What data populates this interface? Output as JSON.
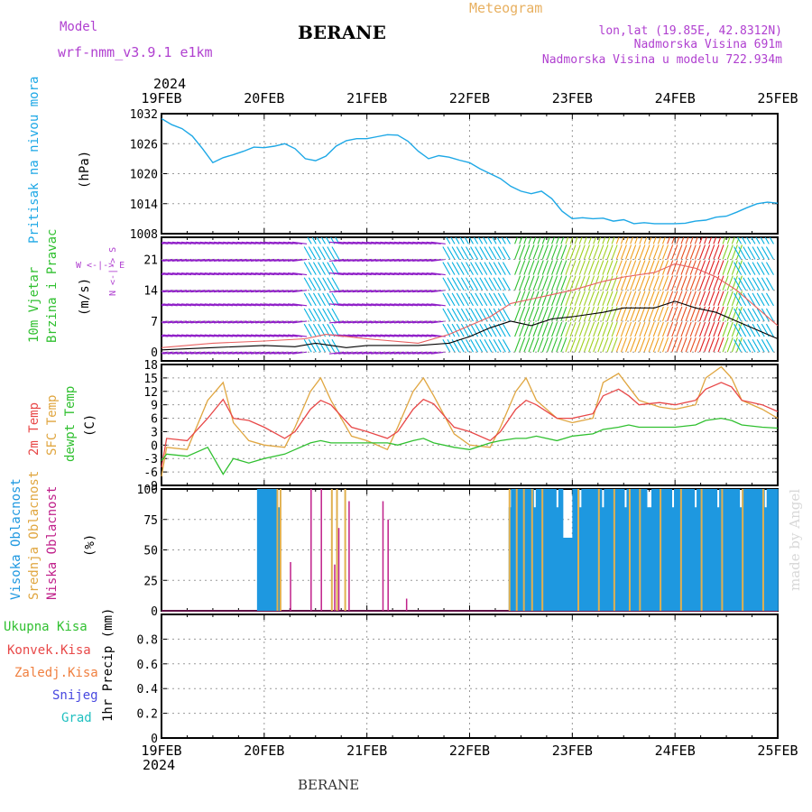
{
  "header": {
    "model_label": "Model",
    "model_name": "wrf-nmm_v3.9.1 e1km",
    "station_title": "BERANE",
    "meteogram_label": "Meteogram",
    "lonlat": "lon,lat (19.85E, 42.8312N)",
    "altitude": "Nadmorska Visina 691m",
    "model_altitude": "Nadmorska Visina u modelu 722.934m",
    "year_top": "2024",
    "year_bottom": "2024",
    "footer_station": "BERANE",
    "credit": "made by Angel"
  },
  "time_axis": {
    "labels": [
      "19FEB",
      "20FEB",
      "21FEB",
      "22FEB",
      "23FEB",
      "24FEB",
      "25FEB"
    ]
  },
  "colors": {
    "pressure": "#1ea8e6",
    "temp2m": "#e84848",
    "sfc": "#e0a640",
    "dewpt": "#30c030",
    "high_cloud": "#1e98e0",
    "mid_cloud": "#e0b050",
    "low_cloud": "#c0208a",
    "purple": "#b040d0",
    "wind_low": "#9020c8",
    "wind_mid": "#00b0e0",
    "wind_high": "#e02020"
  },
  "chart_data": [
    {
      "type": "line",
      "name": "pressure",
      "ylabel_color": "Pritisak na nivou mora",
      "ylabel_unit": "(hPa)",
      "ylim": [
        1008,
        1032
      ],
      "yticks": [
        1008,
        1014,
        1020,
        1026,
        1032
      ],
      "x_days": [
        0,
        0.1,
        0.2,
        0.3,
        0.4,
        0.5,
        0.6,
        0.7,
        0.8,
        0.9,
        1.0,
        1.1,
        1.2,
        1.3,
        1.4,
        1.5,
        1.6,
        1.7,
        1.8,
        1.9,
        2.0,
        2.1,
        2.2,
        2.3,
        2.4,
        2.5,
        2.6,
        2.7,
        2.8,
        2.9,
        3.0,
        3.1,
        3.2,
        3.3,
        3.4,
        3.5,
        3.6,
        3.7,
        3.8,
        3.9,
        4.0,
        4.1,
        4.2,
        4.3,
        4.4,
        4.5,
        4.6,
        4.7,
        4.8,
        4.9,
        5.0,
        5.1,
        5.2,
        5.3,
        5.4,
        5.5,
        5.6,
        5.7,
        5.8,
        5.9,
        6.0
      ],
      "values": [
        1031,
        1029.8,
        1029,
        1027.5,
        1025,
        1022.2,
        1023.2,
        1023.8,
        1024.5,
        1025.3,
        1025.2,
        1025.5,
        1026,
        1025,
        1023,
        1022.6,
        1023.5,
        1025.5,
        1026.6,
        1027,
        1027,
        1027.4,
        1027.8,
        1027.7,
        1026.5,
        1024.5,
        1023,
        1023.6,
        1023.3,
        1022.7,
        1022.2,
        1021,
        1020,
        1019,
        1017.5,
        1016.5,
        1016,
        1016.5,
        1015,
        1012.5,
        1011,
        1011.2,
        1011,
        1011.1,
        1010.5,
        1010.8,
        1010,
        1010.2,
        1010,
        1010,
        1010,
        1010.1,
        1010.5,
        1010.7,
        1011.3,
        1011.5,
        1012.3,
        1013.2,
        1014,
        1014.3,
        1014.1
      ]
    },
    {
      "type": "line",
      "name": "wind",
      "ylabel_color_1": "10m Vjetar",
      "ylabel_color_2": "Brzina i Pravac",
      "ylabel_unit": "(m/s)",
      "compass_ns": "N <-|-> S",
      "compass_we": "W <-|-> E",
      "ylim": [
        -2,
        26
      ],
      "yticks": [
        0,
        7,
        14,
        21
      ],
      "series": [
        {
          "x_days": [
            0,
            0.5,
            1,
            1.3,
            1.5,
            1.8,
            2,
            2.5,
            2.8,
            3,
            3.2,
            3.4,
            3.6,
            3.8,
            4,
            4.3,
            4.5,
            4.8,
            5,
            5.2,
            5.4,
            5.6,
            6
          ],
          "values": [
            0.5,
            1,
            1.5,
            1.2,
            2,
            1,
            1.5,
            1.5,
            2,
            3.5,
            5.5,
            7,
            6,
            7.5,
            8,
            9,
            10,
            10,
            11.5,
            10,
            9,
            7,
            3
          ]
        },
        {
          "x_days": [
            0,
            0.5,
            1,
            1.4,
            1.6,
            2,
            2.5,
            2.8,
            3,
            3.2,
            3.4,
            3.6,
            3.8,
            4,
            4.3,
            4.5,
            4.8,
            5,
            5.2,
            5.4,
            5.6,
            6
          ],
          "values": [
            1,
            2,
            2.5,
            3,
            4,
            3,
            2,
            4,
            6,
            8,
            11,
            12,
            13,
            14,
            16,
            17,
            18,
            20,
            19,
            17,
            14,
            6
          ]
        }
      ]
    },
    {
      "type": "line",
      "name": "temperature",
      "ylabel_t2m": "2m Temp",
      "ylabel_sfc": "SFC Temp",
      "ylabel_dew": "dewpt Temp",
      "ylabel_unit": "(C)",
      "ylim": [
        -9,
        18
      ],
      "yticks": [
        -9,
        -6,
        -3,
        0,
        3,
        6,
        9,
        12,
        15,
        18
      ],
      "x_days": [
        0,
        0.05,
        0.25,
        0.45,
        0.6,
        0.7,
        0.85,
        1.0,
        1.2,
        1.3,
        1.45,
        1.55,
        1.65,
        1.85,
        2.0,
        2.2,
        2.3,
        2.45,
        2.55,
        2.65,
        2.85,
        3.0,
        3.2,
        3.3,
        3.45,
        3.55,
        3.65,
        3.85,
        4.0,
        4.2,
        4.3,
        4.45,
        4.55,
        4.65,
        4.85,
        5.0,
        5.2,
        5.3,
        5.45,
        5.55,
        5.65,
        5.85,
        6.0
      ],
      "series": [
        {
          "name": "2m",
          "values": [
            -5,
            1.5,
            1,
            6,
            10.2,
            6,
            5.5,
            4,
            1.5,
            3,
            8,
            10,
            9,
            4,
            3,
            1.5,
            3,
            8,
            10.2,
            9.2,
            4,
            3,
            1,
            3,
            8,
            10,
            9,
            6,
            6,
            7,
            11,
            12.5,
            11,
            9,
            9.5,
            9,
            10,
            12.5,
            14,
            13,
            10,
            9,
            7.5
          ]
        },
        {
          "name": "SFC",
          "values": [
            -7,
            -0.5,
            -1,
            10,
            14,
            5,
            1,
            0,
            -0.5,
            4,
            12,
            15,
            10,
            2,
            1,
            -1,
            4,
            12,
            15,
            11,
            2.5,
            0,
            -0.5,
            4,
            12,
            15,
            10,
            6,
            5,
            6,
            14,
            16,
            13,
            10,
            8.5,
            8,
            9,
            15,
            17.5,
            15,
            10,
            8,
            6
          ]
        },
        {
          "name": "dewpt",
          "values": [
            -3.5,
            -2,
            -2.5,
            -0.5,
            -6.5,
            -3,
            -4,
            -3,
            -2,
            -1,
            0.5,
            1,
            0.5,
            0.5,
            0.5,
            0.5,
            0,
            1,
            1.5,
            0.5,
            -0.5,
            -1,
            0.5,
            1,
            1.5,
            1.5,
            2,
            1,
            2,
            2.5,
            3.5,
            4,
            4.5,
            4,
            4,
            4,
            4.5,
            5.5,
            6,
            5.5,
            4.5,
            4,
            3.8
          ]
        }
      ]
    },
    {
      "type": "bar",
      "name": "cloud",
      "ylabel_high": "Visoka Oblacnost",
      "ylabel_mid": "Srednja Oblacnost",
      "ylabel_low": "Niska Oblacnost",
      "ylabel_unit": "(%)",
      "ylim": [
        0,
        100
      ],
      "yticks": [
        0,
        25,
        50,
        75,
        100
      ],
      "high_spans_days": [
        [
          0.93,
          1.15
        ],
        [
          3.38,
          4.0
        ],
        [
          4.0,
          5.99
        ]
      ],
      "mid_bar_days": [
        1.12,
        1.15,
        1.65,
        1.7,
        1.78,
        3.38,
        3.45,
        3.52,
        3.6,
        3.7,
        4.05,
        4.25,
        4.4,
        4.55,
        4.65,
        4.85,
        5.05,
        5.25,
        5.45,
        5.65,
        5.85
      ],
      "low_bars": [
        {
          "x_days": 1.25,
          "value": 40
        },
        {
          "x_days": 1.45,
          "value": 100
        },
        {
          "x_days": 1.55,
          "value": 100
        },
        {
          "x_days": 1.68,
          "value": 38
        },
        {
          "x_days": 1.72,
          "value": 68
        },
        {
          "x_days": 1.82,
          "value": 90
        },
        {
          "x_days": 2.15,
          "value": 90
        },
        {
          "x_days": 2.2,
          "value": 75
        },
        {
          "x_days": 2.38,
          "value": 10
        }
      ]
    },
    {
      "type": "line",
      "name": "precip",
      "ylabel_total": "Ukupna Kisa",
      "ylabel_conv": "Konvek.Kisa",
      "ylabel_ice": "Zaledj.Kisa",
      "ylabel_snow": "Snijeg",
      "ylabel_hail": "Grad",
      "ylabel_unit": "1hr Precip (mm)",
      "ylim": [
        0,
        1.0
      ],
      "yticks": [
        0,
        0.2,
        0.4,
        0.6,
        0.8
      ],
      "values": []
    }
  ]
}
